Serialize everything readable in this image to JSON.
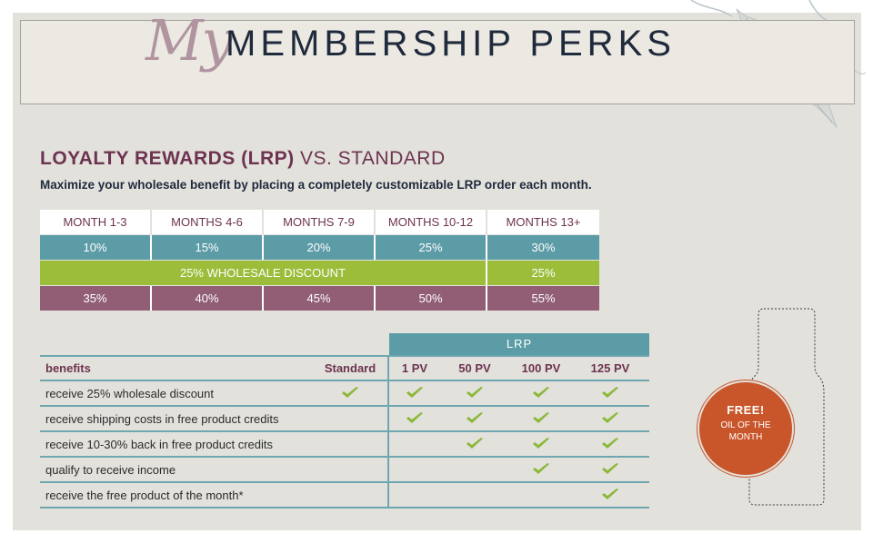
{
  "header": {
    "my": "My",
    "title": "MEMBERSHIP PERKS"
  },
  "lrp_section": {
    "heading_bold": "LOYALTY REWARDS (LRP)",
    "heading_rest": "VS. STANDARD",
    "subtitle": "Maximize your wholesale benefit by placing a completely customizable LRP order each month."
  },
  "tiers": {
    "months": [
      "MONTH 1-3",
      "MONTHS 4-6",
      "MONTHS 7-9",
      "MONTHS 10-12",
      "MONTHS 13+"
    ],
    "product_credits": [
      "10%",
      "15%",
      "20%",
      "25%",
      "30%"
    ],
    "wholesale_label": "25% WHOLESALE DISCOUNT",
    "wholesale_13": "25%",
    "totals": [
      "35%",
      "40%",
      "45%",
      "50%",
      "55%"
    ]
  },
  "benefits": {
    "lrp_band": "LRP",
    "columns": [
      "benefits",
      "Standard",
      "1 PV",
      "50 PV",
      "100 PV",
      "125 PV"
    ],
    "rows": [
      {
        "label": "receive 25% wholesale discount",
        "checks": [
          true,
          true,
          true,
          true,
          true
        ]
      },
      {
        "label": "receive shipping costs in free product credits",
        "checks": [
          false,
          true,
          true,
          true,
          true
        ]
      },
      {
        "label": "receive 10-30% back in free product credits",
        "checks": [
          false,
          false,
          true,
          true,
          true
        ]
      },
      {
        "label": "qualify to receive income",
        "checks": [
          false,
          false,
          false,
          true,
          true
        ]
      },
      {
        "label": "receive the free product of the month*",
        "checks": [
          false,
          false,
          false,
          false,
          true
        ]
      }
    ]
  },
  "badge": {
    "free": "FREE!",
    "text": "OIL OF THE MONTH"
  },
  "colors": {
    "plum": "#6d3350",
    "teal": "#5c9ca6",
    "green": "#9bbd3a",
    "mauve": "#915e75",
    "orange": "#c9562a",
    "check": "#8cb83a"
  }
}
